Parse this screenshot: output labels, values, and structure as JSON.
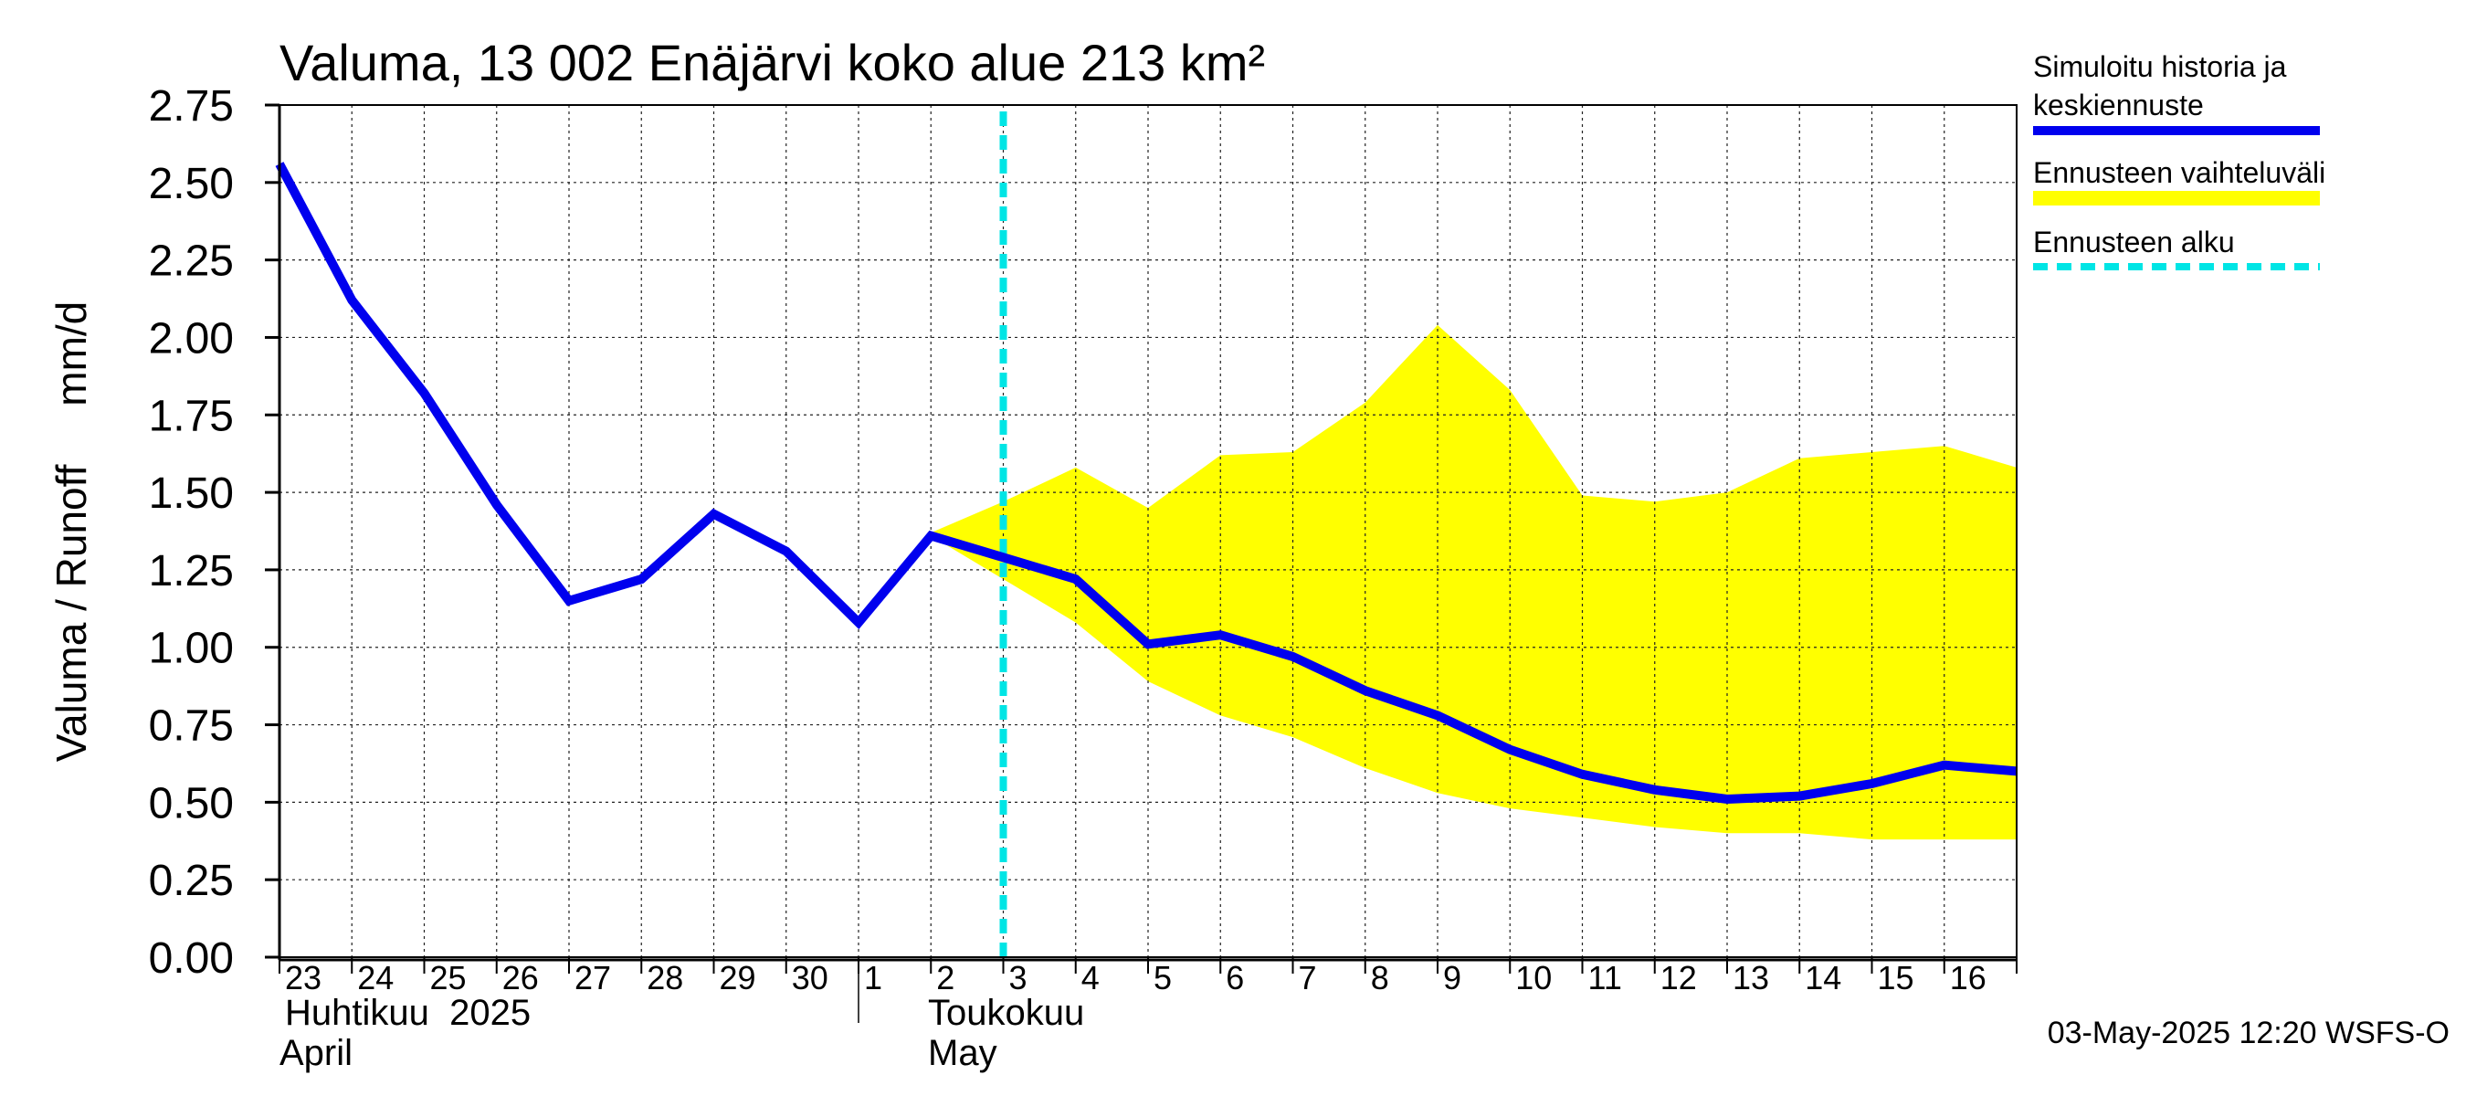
{
  "chart_data": {
    "type": "line",
    "title": "Valuma, 13 002 Enäjärvi koko alue 213 km²",
    "ylabel": "Valuma / Runoff     mm/d",
    "ylim": [
      0,
      2.75
    ],
    "yticks": [
      "0.00",
      "0.25",
      "0.50",
      "0.75",
      "1.00",
      "1.25",
      "1.50",
      "1.75",
      "2.00",
      "2.25",
      "2.50",
      "2.75"
    ],
    "xlim": [
      "2025-04-23",
      "2025-05-17"
    ],
    "xticks": [
      "23",
      "24",
      "25",
      "26",
      "27",
      "28",
      "29",
      "30",
      "1",
      "2",
      "3",
      "4",
      "5",
      "6",
      "7",
      "8",
      "9",
      "10",
      "11",
      "12",
      "13",
      "14",
      "15",
      "16"
    ],
    "month_labels": [
      {
        "fi": "Huhtikuu  2025",
        "en": "April"
      },
      {
        "fi": "Toukokuu",
        "en": "May"
      }
    ],
    "grid": true,
    "legend_position": "right",
    "forecast_start": "2025-05-03",
    "colors": {
      "series": "#0000ee",
      "band": "#ffff00",
      "forecast_line": "#00e5e5"
    },
    "series": [
      {
        "name": "Simuloitu historia ja keskiennuste",
        "x": [
          "2025-04-23",
          "2025-04-24",
          "2025-04-25",
          "2025-04-26",
          "2025-04-27",
          "2025-04-28",
          "2025-04-29",
          "2025-04-30",
          "2025-05-01",
          "2025-05-02",
          "2025-05-03",
          "2025-05-04",
          "2025-05-05",
          "2025-05-06",
          "2025-05-07",
          "2025-05-08",
          "2025-05-09",
          "2025-05-10",
          "2025-05-11",
          "2025-05-12",
          "2025-05-13",
          "2025-05-14",
          "2025-05-15",
          "2025-05-16",
          "2025-05-17"
        ],
        "values": [
          2.56,
          2.12,
          1.82,
          1.46,
          1.15,
          1.22,
          1.43,
          1.31,
          1.08,
          1.36,
          1.29,
          1.22,
          1.01,
          1.04,
          0.97,
          0.86,
          0.78,
          0.67,
          0.59,
          0.54,
          0.51,
          0.52,
          0.56,
          0.62,
          0.6
        ]
      },
      {
        "name": "Ennusteen vaihteluväli",
        "x": [
          "2025-05-02",
          "2025-05-03",
          "2025-05-04",
          "2025-05-05",
          "2025-05-06",
          "2025-05-07",
          "2025-05-08",
          "2025-05-09",
          "2025-05-10",
          "2025-05-11",
          "2025-05-12",
          "2025-05-13",
          "2025-05-14",
          "2025-05-15",
          "2025-05-16",
          "2025-05-17"
        ],
        "upper": [
          1.37,
          1.47,
          1.58,
          1.45,
          1.62,
          1.63,
          1.79,
          2.04,
          1.83,
          1.49,
          1.47,
          1.5,
          1.61,
          1.63,
          1.65,
          1.58
        ],
        "lower": [
          1.36,
          1.22,
          1.08,
          0.89,
          0.78,
          0.71,
          0.61,
          0.53,
          0.48,
          0.45,
          0.42,
          0.4,
          0.4,
          0.38,
          0.38,
          0.38
        ]
      }
    ],
    "legend": [
      {
        "label_lines": [
          "Simuloitu historia ja",
          "keskiennuste"
        ],
        "style": "line"
      },
      {
        "label_lines": [
          "Ennusteen vaihteluväli"
        ],
        "style": "band"
      },
      {
        "label_lines": [
          "Ennusteen alku"
        ],
        "style": "dashed"
      }
    ],
    "footer": "03-May-2025 12:20 WSFS-O"
  }
}
